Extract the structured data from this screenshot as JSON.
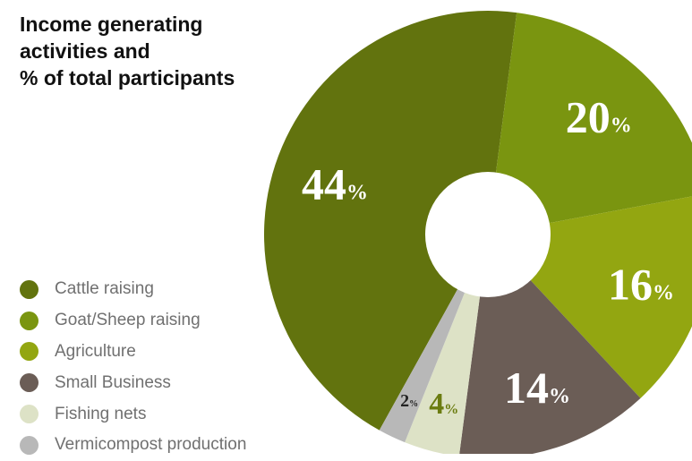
{
  "title_lines": [
    "Income generating",
    "activities and",
    "% of total participants"
  ],
  "chart_data": {
    "type": "pie",
    "variant": "donut",
    "categories": [
      "Cattle raising",
      "Goat/Sheep raising",
      "Agriculture",
      "Small Business",
      "Fishing nets",
      "Vermicompost production"
    ],
    "values": [
      44,
      20,
      16,
      14,
      4,
      2
    ],
    "labels": [
      "44",
      "20",
      "16",
      "14",
      "4",
      "2"
    ],
    "unit": "%",
    "colors": [
      "#62730e",
      "#7a9510",
      "#93a611",
      "#6b5d56",
      "#dde2c6",
      "#b8b8b8"
    ],
    "label_colors": [
      "#ffffff",
      "#ffffff",
      "#ffffff",
      "#ffffff",
      "#6b7c10",
      "#222222"
    ],
    "legend_position": "bottom-left"
  }
}
